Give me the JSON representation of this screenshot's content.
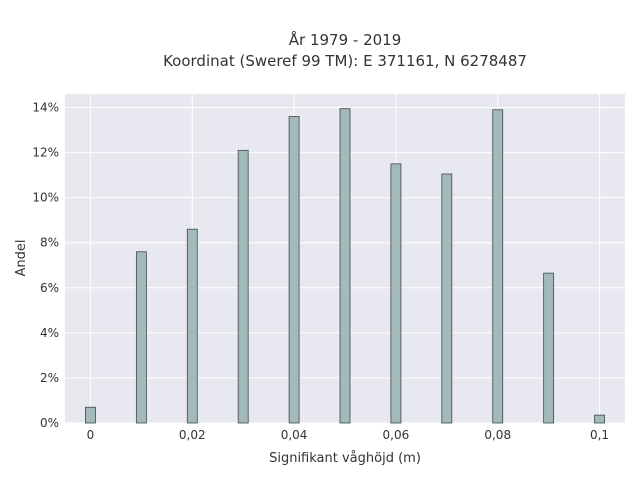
{
  "chart_data": {
    "type": "bar",
    "title": "År 1979 - 2019",
    "subtitle": "Koordinat (Sweref 99 TM): E 371161, N 6278487",
    "xlabel": "Signifikant våghöjd (m)",
    "ylabel": "Andel",
    "x": [
      0,
      0.01,
      0.02,
      0.03,
      0.04,
      0.05,
      0.06,
      0.07,
      0.08,
      0.09,
      0.1
    ],
    "values": [
      0.7,
      7.6,
      8.6,
      12.1,
      13.6,
      13.95,
      11.5,
      11.05,
      13.9,
      6.65,
      0.35
    ],
    "xlim": [
      -0.005,
      0.105
    ],
    "ylim": [
      0,
      14.6
    ],
    "x_ticks": [
      0,
      0.02,
      0.04,
      0.06,
      0.08,
      0.1
    ],
    "x_tick_labels": [
      "0",
      "0,02",
      "0,04",
      "0,06",
      "0,08",
      "0,1"
    ],
    "y_ticks": [
      0,
      2,
      4,
      6,
      8,
      10,
      12,
      14
    ],
    "y_tick_labels": [
      "0%",
      "2%",
      "4%",
      "6%",
      "8%",
      "10%",
      "12%",
      "14%"
    ],
    "grid": true,
    "colors": {
      "bar_fill": "#a3b9ba",
      "bar_stroke": "#3e4a4b",
      "plot_bg": "#e8e8f0",
      "grid": "#ffffff"
    }
  }
}
